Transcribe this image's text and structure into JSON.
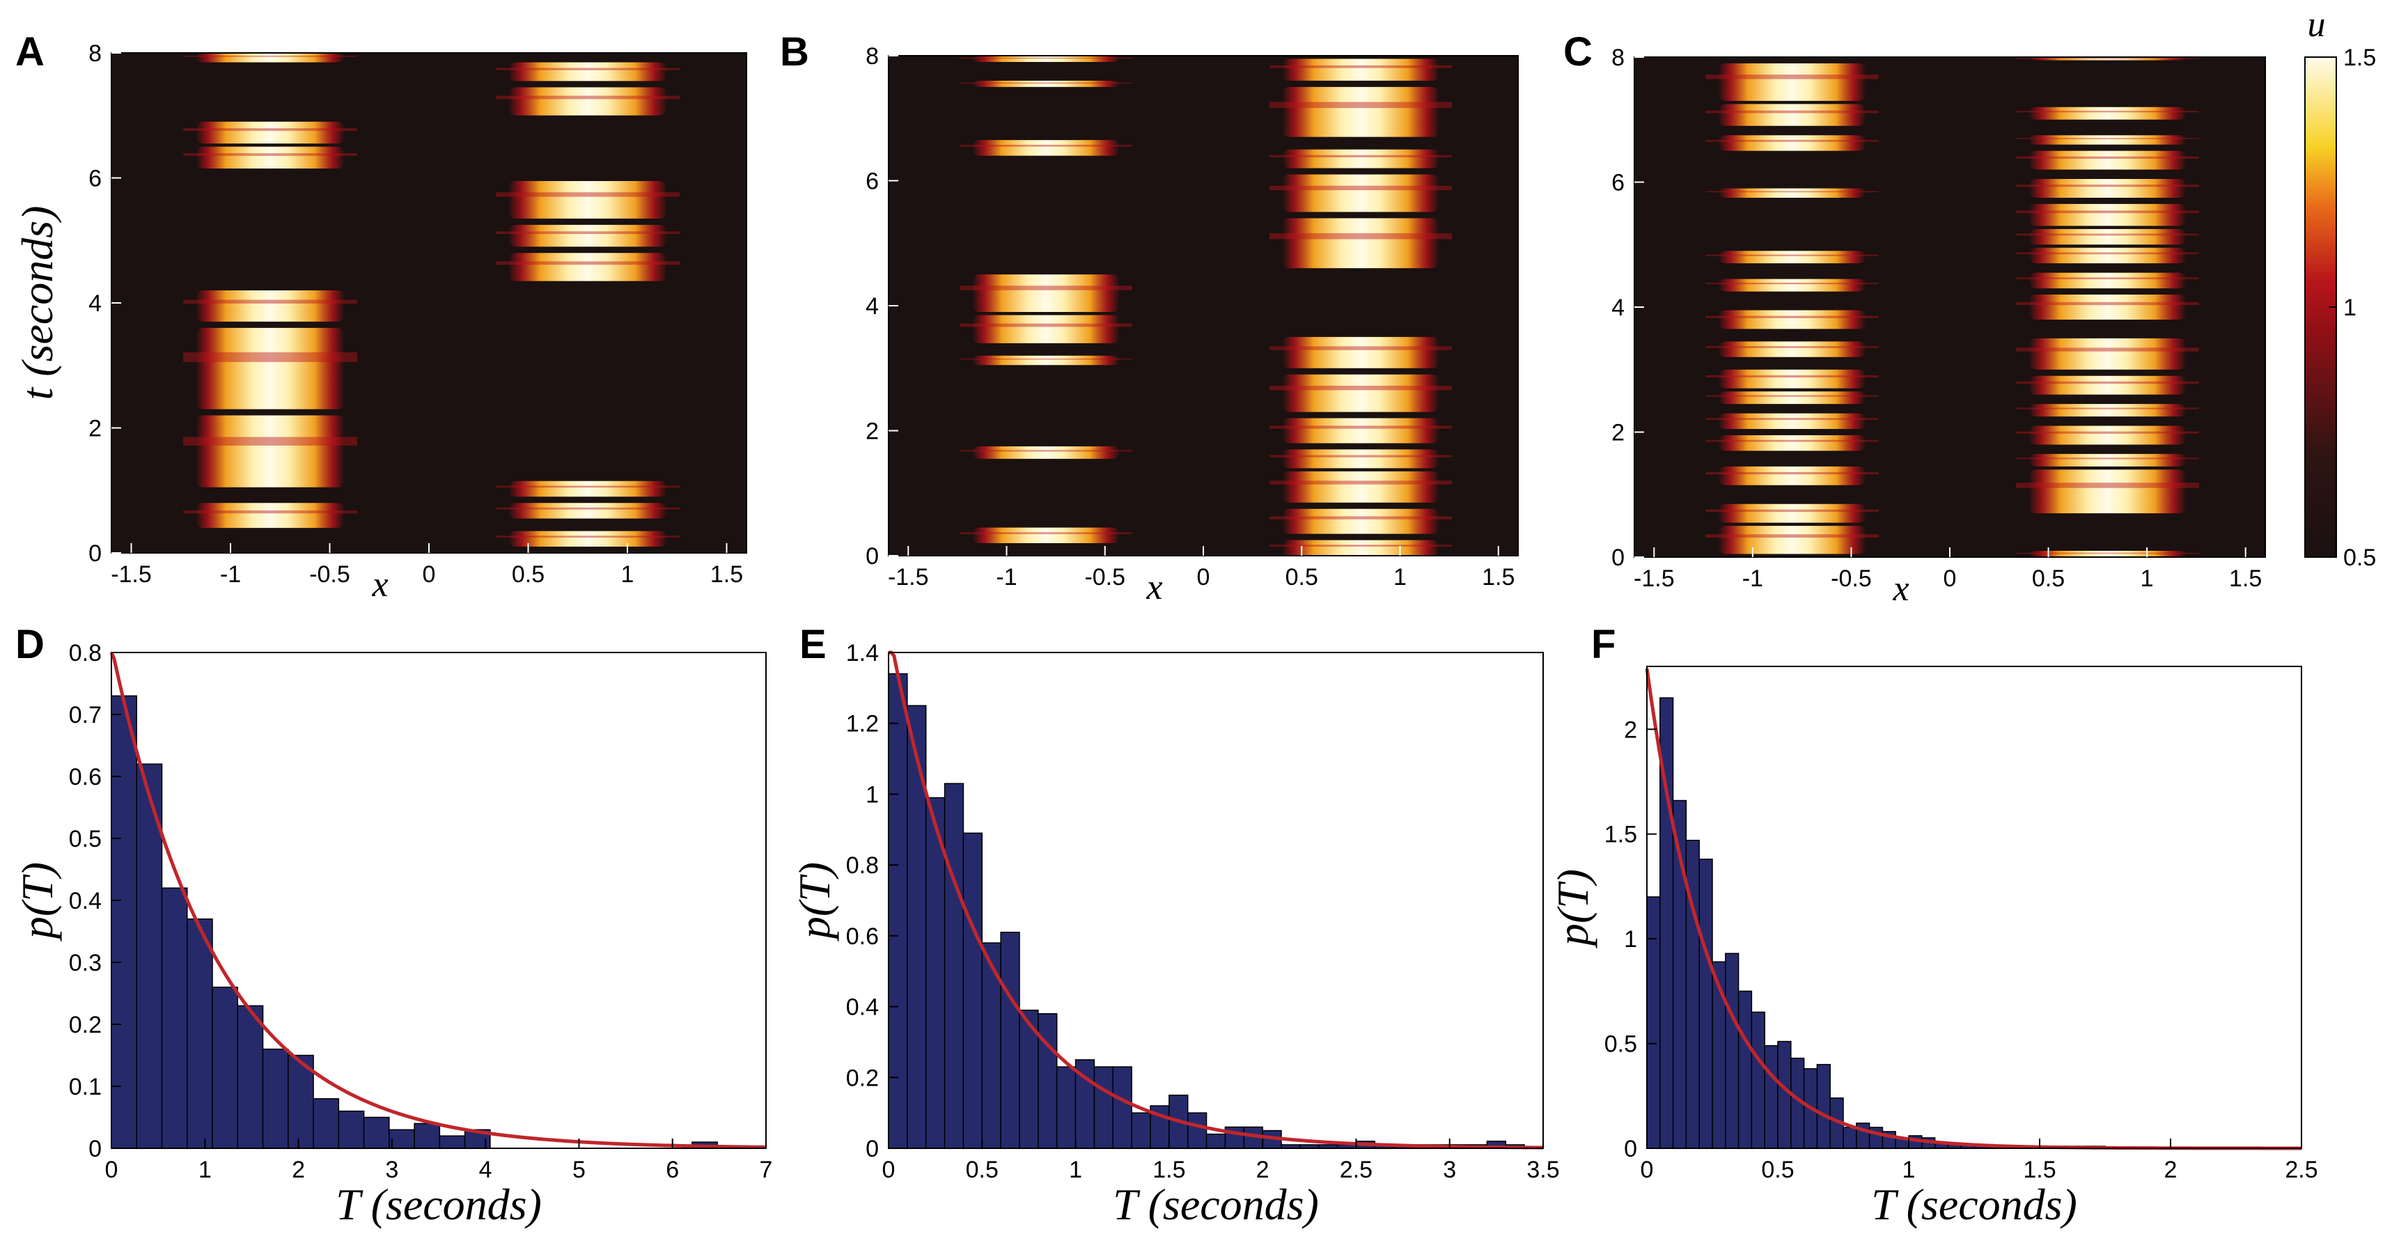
{
  "colors": {
    "bar_fill": "#262a6b",
    "fit_line": "#c0262c",
    "heat_low": "#1a1110",
    "heat_mid": "#b8141b",
    "heat_high": "#fffbe8"
  },
  "chart_data": [
    {
      "panel": "A",
      "type": "heatmap",
      "xlabel": "x",
      "ylabel": "t (seconds)",
      "xlim": [
        -1.6,
        1.6
      ],
      "ylim": [
        0,
        8
      ],
      "xticks": [
        "-1.5",
        "-1",
        "-0.5",
        "0",
        "0.5",
        "1",
        "1.5"
      ],
      "yticks": [
        "0",
        "2",
        "4",
        "6",
        "8"
      ],
      "bumps": [
        {
          "x_center": -0.8,
          "width": 0.75,
          "intervals": [
            [
              0.4,
              0.8
            ],
            [
              1.05,
              2.2
            ],
            [
              2.3,
              3.6
            ],
            [
              3.7,
              4.2
            ],
            [
              6.15,
              6.5
            ],
            [
              6.55,
              6.9
            ],
            [
              7.85,
              8.0
            ]
          ]
        },
        {
          "x_center": 0.8,
          "width": 0.8,
          "intervals": [
            [
              0.1,
              0.35
            ],
            [
              0.55,
              0.8
            ],
            [
              0.9,
              1.15
            ],
            [
              4.35,
              4.8
            ],
            [
              4.9,
              5.25
            ],
            [
              5.35,
              5.95
            ],
            [
              7.0,
              7.45
            ],
            [
              7.55,
              7.85
            ]
          ]
        }
      ]
    },
    {
      "panel": "B",
      "type": "heatmap",
      "xlabel": "x",
      "ylabel": "",
      "xlim": [
        -1.6,
        1.6
      ],
      "ylim": [
        0,
        8
      ],
      "xticks": [
        "-1.5",
        "-1",
        "-0.5",
        "0",
        "0.5",
        "1",
        "1.5"
      ],
      "yticks": [
        "0",
        "2",
        "4",
        "6",
        "8"
      ],
      "bumps": [
        {
          "x_center": -0.8,
          "width": 0.75,
          "intervals": [
            [
              0.2,
              0.45
            ],
            [
              1.55,
              1.75
            ],
            [
              3.05,
              3.2
            ],
            [
              3.4,
              3.85
            ],
            [
              3.9,
              4.5
            ],
            [
              6.4,
              6.65
            ],
            [
              7.5,
              7.6
            ],
            [
              7.9,
              8.0
            ]
          ]
        },
        {
          "x_center": 0.8,
          "width": 0.8,
          "intervals": [
            [
              0.0,
              0.25
            ],
            [
              0.35,
              0.75
            ],
            [
              0.85,
              1.35
            ],
            [
              1.4,
              1.7
            ],
            [
              1.8,
              2.2
            ],
            [
              2.3,
              2.9
            ],
            [
              3.0,
              3.5
            ],
            [
              4.6,
              5.4
            ],
            [
              5.5,
              6.1
            ],
            [
              6.2,
              6.5
            ],
            [
              6.7,
              7.5
            ],
            [
              7.6,
              7.95
            ]
          ]
        }
      ]
    },
    {
      "panel": "C",
      "type": "heatmap",
      "xlabel": "x",
      "ylabel": "",
      "xlim": [
        -1.6,
        1.6
      ],
      "ylim": [
        0,
        8
      ],
      "xticks": [
        "-1.5",
        "-1",
        "-0.5",
        "0",
        "0.5",
        "1",
        "1.5"
      ],
      "yticks": [
        "0",
        "2",
        "4",
        "6",
        "8"
      ],
      "colorbar": {
        "label": "u",
        "range": [
          0.5,
          1.5
        ],
        "ticks": [
          "0.5",
          "1",
          "1.5"
        ]
      },
      "bumps": [
        {
          "x_center": -0.8,
          "width": 0.75,
          "intervals": [
            [
              0.05,
              0.5
            ],
            [
              0.55,
              0.85
            ],
            [
              1.15,
              1.45
            ],
            [
              1.7,
              1.95
            ],
            [
              2.05,
              2.3
            ],
            [
              2.45,
              2.65
            ],
            [
              2.7,
              3.0
            ],
            [
              3.2,
              3.45
            ],
            [
              3.65,
              3.95
            ],
            [
              4.25,
              4.45
            ],
            [
              4.7,
              4.9
            ],
            [
              5.75,
              5.9
            ],
            [
              6.5,
              6.75
            ],
            [
              6.9,
              7.25
            ],
            [
              7.3,
              7.9
            ]
          ]
        },
        {
          "x_center": 0.8,
          "width": 0.8,
          "intervals": [
            [
              0.0,
              0.1
            ],
            [
              0.7,
              1.4
            ],
            [
              1.45,
              1.65
            ],
            [
              1.8,
              2.1
            ],
            [
              2.25,
              2.45
            ],
            [
              2.6,
              2.9
            ],
            [
              3.0,
              3.5
            ],
            [
              3.8,
              4.2
            ],
            [
              4.3,
              4.55
            ],
            [
              4.7,
              4.95
            ],
            [
              5.0,
              5.25
            ],
            [
              5.3,
              5.65
            ],
            [
              5.75,
              6.05
            ],
            [
              6.2,
              6.5
            ],
            [
              6.6,
              6.75
            ],
            [
              7.0,
              7.2
            ],
            [
              7.95,
              8.0
            ]
          ]
        }
      ]
    },
    {
      "panel": "D",
      "type": "bar",
      "xlabel": "T (seconds)",
      "ylabel": "p(T)",
      "xlim": [
        0,
        7
      ],
      "ylim": [
        0,
        0.8
      ],
      "xticks": [
        "0",
        "1",
        "2",
        "3",
        "4",
        "5",
        "6",
        "7"
      ],
      "yticks": [
        "0",
        "0.1",
        "0.2",
        "0.3",
        "0.4",
        "0.5",
        "0.6",
        "0.7",
        "0.8"
      ],
      "bin_width": 0.27,
      "values": [
        0.73,
        0.62,
        0.42,
        0.37,
        0.26,
        0.23,
        0.16,
        0.15,
        0.08,
        0.06,
        0.05,
        0.03,
        0.04,
        0.02,
        0.03,
        0,
        0,
        0,
        0,
        0,
        0,
        0,
        0,
        0.01,
        0
      ],
      "fit": {
        "type": "exponential",
        "amplitude": 0.81,
        "rate": 0.87
      }
    },
    {
      "panel": "E",
      "type": "bar",
      "xlabel": "T (seconds)",
      "ylabel": "p(T)",
      "xlim": [
        0,
        3.5
      ],
      "ylim": [
        0,
        1.4
      ],
      "xticks": [
        "0",
        "0.5",
        "1",
        "1.5",
        "2",
        "2.5",
        "3",
        "3.5"
      ],
      "yticks": [
        "0",
        "0.2",
        "0.4",
        "0.6",
        "0.8",
        "1",
        "1.2",
        "1.4"
      ],
      "bin_width": 0.1,
      "values": [
        1.34,
        1.25,
        0.99,
        1.03,
        0.89,
        0.58,
        0.61,
        0.39,
        0.38,
        0.23,
        0.25,
        0.23,
        0.23,
        0.1,
        0.12,
        0.15,
        0.1,
        0.04,
        0.06,
        0.06,
        0.05,
        0.01,
        0.01,
        0.01,
        0.01,
        0.02,
        0.01,
        0.01,
        0.01,
        0.01,
        0.01,
        0.01,
        0.02,
        0.01,
        0
      ],
      "fit": {
        "type": "exponential",
        "amplitude": 1.47,
        "rate": 1.9
      }
    },
    {
      "panel": "F",
      "type": "bar",
      "xlabel": "T (seconds)",
      "ylabel": "p(T)",
      "xlim": [
        0,
        2.5
      ],
      "ylim": [
        0,
        2.3
      ],
      "xticks": [
        "0",
        "0.5",
        "1",
        "1.5",
        "2",
        "2.5"
      ],
      "yticks": [
        "0",
        "0.5",
        "1",
        "1.5",
        "2"
      ],
      "bin_width": 0.05,
      "values": [
        1.2,
        2.15,
        1.66,
        1.47,
        1.38,
        0.89,
        0.93,
        0.75,
        0.65,
        0.49,
        0.51,
        0.43,
        0.38,
        0.4,
        0.24,
        0.1,
        0.12,
        0.1,
        0.08,
        0.05,
        0.06,
        0.05,
        0.03,
        0.02,
        0.02,
        0.01,
        0.01,
        0.01,
        0.01,
        0.01,
        0.01,
        0.01,
        0.01,
        0.01,
        0.01,
        0,
        0,
        0,
        0,
        0,
        0,
        0,
        0,
        0,
        0,
        0,
        0,
        0,
        0,
        0
      ],
      "fit": {
        "type": "exponential",
        "amplitude": 2.29,
        "rate": 3.95
      }
    }
  ]
}
